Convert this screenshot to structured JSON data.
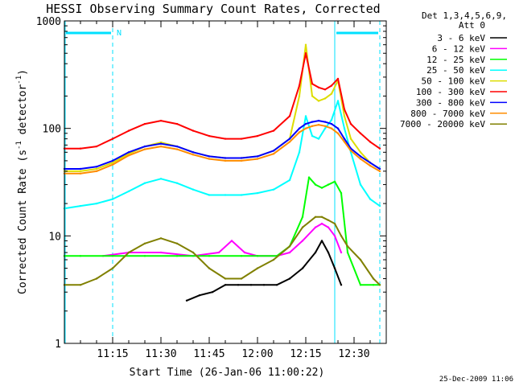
{
  "chart_data": {
    "type": "line",
    "title": "HESSI Observing Summary Count Rates, Corrected",
    "xlabel": "Start Time (26-Jan-06 11:00:22)",
    "ylabel_main": "Corrected Count Rate (s",
    "ylabel_sup1": "-1",
    "ylabel_mid": " detector",
    "ylabel_sup2": "-1",
    "ylabel_end": ")",
    "y_scale": "log",
    "ylim": [
      1,
      1000
    ],
    "y_ticks": [
      "1",
      "10",
      "100",
      "1000"
    ],
    "x_range_minutes": [
      0,
      100
    ],
    "x_ticks": [
      {
        "label": "11:15",
        "minute": 15
      },
      {
        "label": "11:30",
        "minute": 30
      },
      {
        "label": "11:45",
        "minute": 45
      },
      {
        "label": "12:00",
        "minute": 60
      },
      {
        "label": "12:15",
        "minute": 75
      },
      {
        "label": "12:30",
        "minute": 90
      }
    ],
    "legend_header": [
      "Det 1,3,4,5,6,9,",
      "Att 0"
    ],
    "timestamp": "25-Dec-2009 11:06",
    "night_marker_label": "N",
    "night_intervals_minutes": [
      [
        0,
        15
      ],
      [
        84,
        98
      ]
    ],
    "dashed_lines_minutes": [
      15,
      98
    ],
    "solid_line_minutes": 84,
    "series": [
      {
        "name": "3 - 6 keV",
        "color": "#000000",
        "x": [
          38,
          42,
          46,
          50,
          54,
          58,
          62,
          66,
          70,
          74,
          78,
          80,
          82,
          84,
          86
        ],
        "y": [
          2.5,
          2.8,
          3.0,
          3.5,
          3.5,
          3.5,
          3.5,
          3.5,
          4,
          5,
          7,
          9,
          7,
          5,
          3.5
        ]
      },
      {
        "name": "6 - 12 keV",
        "color": "#ff00ff",
        "x": [
          12,
          20,
          30,
          40,
          48,
          52,
          56,
          60,
          66,
          70,
          74,
          78,
          80,
          82,
          84,
          86
        ],
        "y": [
          6.5,
          7,
          7,
          6.5,
          7,
          9,
          7,
          6.5,
          6.5,
          7,
          9,
          12,
          13,
          12,
          10,
          7
        ]
      },
      {
        "name": "12 - 25 keV",
        "color": "#00ff00",
        "x": [
          0,
          5,
          15,
          25,
          35,
          45,
          55,
          60,
          66,
          70,
          74,
          76,
          78,
          80,
          82,
          84,
          86,
          88,
          92,
          96,
          98
        ],
        "y": [
          6.5,
          6.5,
          6.5,
          6.5,
          6.5,
          6.5,
          6.5,
          6.5,
          6.5,
          8,
          15,
          35,
          30,
          28,
          30,
          32,
          25,
          7,
          3.5,
          3.5,
          3.5
        ]
      },
      {
        "name": "25 - 50 keV",
        "color": "#00ffff",
        "x": [
          0,
          5,
          10,
          15,
          20,
          25,
          30,
          35,
          40,
          45,
          50,
          55,
          60,
          65,
          70,
          73,
          75,
          77,
          79,
          81,
          83,
          85,
          87,
          89,
          92,
          95,
          98
        ],
        "y": [
          18,
          19,
          20,
          22,
          26,
          31,
          34,
          31,
          27,
          24,
          24,
          24,
          25,
          27,
          33,
          60,
          130,
          85,
          80,
          100,
          120,
          180,
          100,
          60,
          30,
          22,
          19
        ]
      },
      {
        "name": "50 - 100 keV",
        "color": "#dddd00",
        "x": [
          0,
          5,
          10,
          15,
          20,
          25,
          30,
          35,
          40,
          45,
          50,
          55,
          60,
          65,
          70,
          73,
          75,
          77,
          79,
          81,
          83,
          85,
          87,
          89,
          92,
          95,
          98
        ],
        "y": [
          40,
          40,
          42,
          48,
          58,
          68,
          74,
          68,
          60,
          55,
          53,
          53,
          55,
          62,
          80,
          200,
          600,
          200,
          180,
          190,
          210,
          280,
          130,
          80,
          60,
          48,
          42
        ]
      },
      {
        "name": "100 - 300 keV",
        "color": "#ff0000",
        "x": [
          0,
          5,
          10,
          15,
          20,
          25,
          30,
          35,
          40,
          45,
          50,
          55,
          60,
          65,
          70,
          73,
          75,
          77,
          79,
          81,
          83,
          85,
          87,
          89,
          92,
          95,
          98
        ],
        "y": [
          65,
          65,
          68,
          80,
          95,
          110,
          118,
          110,
          95,
          85,
          80,
          80,
          85,
          95,
          130,
          250,
          500,
          260,
          240,
          230,
          250,
          290,
          150,
          110,
          90,
          75,
          65
        ]
      },
      {
        "name": "300 - 800 keV",
        "color": "#0000ff",
        "x": [
          0,
          5,
          10,
          15,
          20,
          25,
          30,
          35,
          40,
          45,
          50,
          55,
          60,
          65,
          70,
          73,
          75,
          77,
          79,
          81,
          83,
          85,
          87,
          89,
          92,
          95,
          98
        ],
        "y": [
          42,
          42,
          44,
          50,
          60,
          68,
          72,
          68,
          60,
          55,
          53,
          53,
          55,
          62,
          80,
          100,
          110,
          115,
          118,
          115,
          110,
          100,
          80,
          65,
          55,
          48,
          42
        ]
      },
      {
        "name": "800 - 7000 keV",
        "color": "#ff8c00",
        "x": [
          0,
          5,
          10,
          15,
          20,
          25,
          30,
          35,
          40,
          45,
          50,
          55,
          60,
          65,
          70,
          73,
          75,
          77,
          79,
          81,
          83,
          85,
          87,
          89,
          92,
          95,
          98
        ],
        "y": [
          38,
          38,
          40,
          46,
          56,
          64,
          68,
          64,
          57,
          52,
          50,
          50,
          52,
          58,
          75,
          92,
          100,
          105,
          108,
          105,
          100,
          90,
          75,
          62,
          52,
          45,
          40
        ]
      },
      {
        "name": "7000 - 20000 keV",
        "color": "#808000",
        "x": [
          0,
          5,
          10,
          15,
          20,
          25,
          30,
          35,
          40,
          45,
          50,
          55,
          60,
          65,
          70,
          74,
          78,
          80,
          82,
          84,
          86,
          88,
          92,
          96,
          98
        ],
        "y": [
          3.5,
          3.5,
          4,
          5,
          7,
          8.5,
          9.5,
          8.5,
          7,
          5,
          4,
          4,
          5,
          6,
          8,
          12,
          15,
          15,
          14,
          13,
          10,
          8,
          6,
          4,
          3.5
        ]
      }
    ]
  }
}
